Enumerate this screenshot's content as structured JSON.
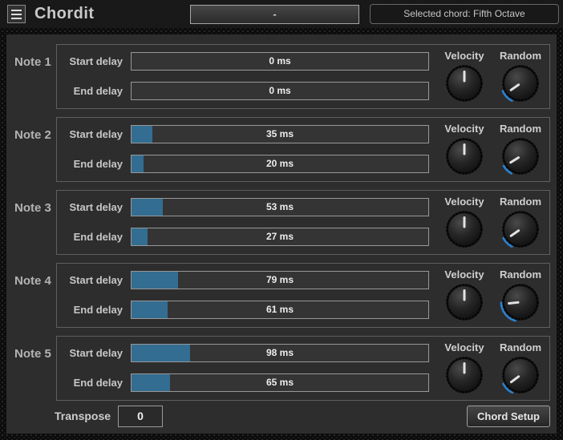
{
  "header": {
    "title": "Chordit",
    "preset_dropdown_value": "-",
    "selected_chord_text": "Selected chord: Fifth Octave"
  },
  "slider_max_ms": 500,
  "notes": [
    {
      "label": "Note 1",
      "start": {
        "label": "Start delay",
        "value": 0,
        "display": "0 ms"
      },
      "end": {
        "label": "End delay",
        "value": 0,
        "display": "0 ms"
      },
      "velocity": {
        "label": "Velocity",
        "angle": 0,
        "arc_start": 0,
        "arc_len": 0
      },
      "random": {
        "label": "Random",
        "angle": -125,
        "arc_start": 208,
        "arc_len": 38
      }
    },
    {
      "label": "Note 2",
      "start": {
        "label": "Start delay",
        "value": 35,
        "display": "35 ms"
      },
      "end": {
        "label": "End delay",
        "value": 20,
        "display": "20 ms"
      },
      "velocity": {
        "label": "Velocity",
        "angle": 0,
        "arc_start": 0,
        "arc_len": 0
      },
      "random": {
        "label": "Random",
        "angle": -122,
        "arc_start": 210,
        "arc_len": 30
      }
    },
    {
      "label": "Note 3",
      "start": {
        "label": "Start delay",
        "value": 53,
        "display": "53 ms"
      },
      "end": {
        "label": "End delay",
        "value": 27,
        "display": "27 ms"
      },
      "velocity": {
        "label": "Velocity",
        "angle": 0,
        "arc_start": 0,
        "arc_len": 0
      },
      "random": {
        "label": "Random",
        "angle": -125,
        "arc_start": 208,
        "arc_len": 34
      }
    },
    {
      "label": "Note 4",
      "start": {
        "label": "Start delay",
        "value": 79,
        "display": "79 ms"
      },
      "end": {
        "label": "End delay",
        "value": 61,
        "display": "61 ms"
      },
      "velocity": {
        "label": "Velocity",
        "angle": 0,
        "arc_start": 0,
        "arc_len": 0
      },
      "random": {
        "label": "Random",
        "angle": -96,
        "arc_start": 198,
        "arc_len": 70
      }
    },
    {
      "label": "Note 5",
      "start": {
        "label": "Start delay",
        "value": 98,
        "display": "98 ms"
      },
      "end": {
        "label": "End delay",
        "value": 65,
        "display": "65 ms"
      },
      "velocity": {
        "label": "Velocity",
        "angle": 0,
        "arc_start": 0,
        "arc_len": 0
      },
      "random": {
        "label": "Random",
        "angle": -127,
        "arc_start": 207,
        "arc_len": 36
      }
    }
  ],
  "footer": {
    "transpose_label": "Transpose",
    "transpose_value": "0",
    "chord_setup_label": "Chord Setup"
  },
  "colors": {
    "slider_fill": "#336d91",
    "knob_arc": "#2c7ec6",
    "panel_bg": "#2d2d2d"
  }
}
